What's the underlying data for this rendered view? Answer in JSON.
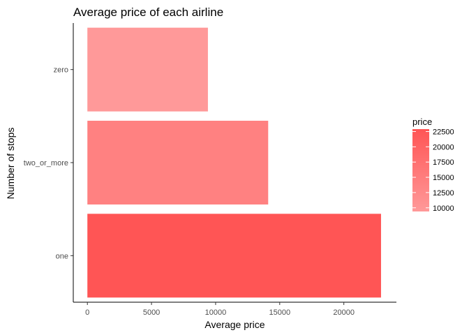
{
  "chart_data": {
    "type": "bar",
    "orientation": "horizontal",
    "title": "Average price of each airline",
    "xlabel": "Average price",
    "ylabel": "Number of stops",
    "categories": [
      "one",
      "two_or_more",
      "zero"
    ],
    "values": [
      22900,
      14100,
      9400
    ],
    "xlim": [
      -1100,
      24100
    ],
    "x_ticks": [
      0,
      5000,
      10000,
      15000,
      20000
    ],
    "grid": false,
    "legend": {
      "title": "price",
      "placement": "right",
      "type": "gradient",
      "ticks": [
        10000,
        12500,
        15000,
        17500,
        20000,
        22500
      ],
      "range": [
        9400,
        22900
      ],
      "color_low": "#ff9999",
      "color_high": "#ff5555"
    }
  }
}
